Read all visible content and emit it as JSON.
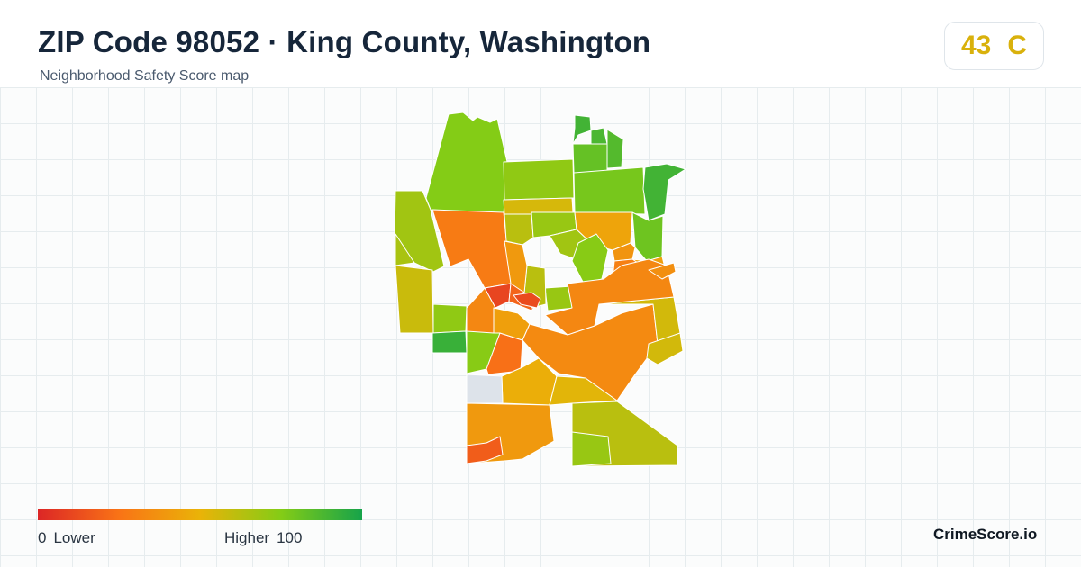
{
  "header": {
    "title": "ZIP Code 98052 · King County, Washington",
    "subtitle": "Neighborhood Safety Score map"
  },
  "score": {
    "value": "43",
    "grade": "C",
    "color": "#d9b10c"
  },
  "legend": {
    "min_value": "0",
    "min_label": "Lower",
    "max_label": "Higher",
    "max_value": "100",
    "gradient": [
      "#dc2626",
      "#f97316",
      "#eab308",
      "#84cc16",
      "#16a34a"
    ]
  },
  "brand": "CrimeScore.io",
  "palette": {
    "no_data": "#dde3ea",
    "tract_outline": "#ffffff"
  },
  "neighborhoods": [
    {
      "id": "n01",
      "score": 75
    },
    {
      "id": "n02",
      "score": 68
    },
    {
      "id": "n03",
      "score": 72
    },
    {
      "id": "n04",
      "score": 82
    },
    {
      "id": "n05",
      "score": 90
    },
    {
      "id": "n06",
      "score": 88
    },
    {
      "id": "n07",
      "score": 78
    },
    {
      "id": "n08",
      "score": 86
    },
    {
      "id": "n09",
      "score": 90
    },
    {
      "id": "n10",
      "score": 28
    },
    {
      "id": "n11",
      "score": 55
    },
    {
      "id": "n12",
      "score": 62
    },
    {
      "id": "n13",
      "score": 70
    },
    {
      "id": "n14",
      "score": 44
    },
    {
      "id": "n15",
      "score": 80
    },
    {
      "id": "n16",
      "score": 68
    },
    {
      "id": "n17",
      "score": 38
    },
    {
      "id": "n18",
      "score": 42
    },
    {
      "id": "n19",
      "score": 30
    },
    {
      "id": "n20",
      "score": 58
    },
    {
      "id": "n21",
      "score": 72
    },
    {
      "id": "n22",
      "score": 10
    },
    {
      "id": "n23",
      "score": 20
    },
    {
      "id": "n24",
      "score": 70
    },
    {
      "id": "n25",
      "score": 62
    },
    {
      "id": "n26",
      "score": 40
    },
    {
      "id": "n27",
      "score": 92
    },
    {
      "id": "n28",
      "score": 74
    },
    {
      "id": "n29",
      "score": 24
    },
    {
      "id": "n30",
      "score": 33
    },
    {
      "id": "n31",
      "score": 42
    },
    {
      "id": "n32",
      "score": 48
    },
    {
      "id": "n33",
      "score": null
    },
    {
      "id": "n34",
      "score": 40
    },
    {
      "id": "n35",
      "score": 62
    },
    {
      "id": "n36",
      "score": 70
    },
    {
      "id": "n37",
      "score": 52
    },
    {
      "id": "n38",
      "score": 34
    },
    {
      "id": "n39",
      "score": 56
    },
    {
      "id": "n40",
      "score": 74
    },
    {
      "id": "n41",
      "score": 33
    },
    {
      "id": "n42",
      "score": 36
    },
    {
      "id": "n43",
      "score": 66
    },
    {
      "id": "n44",
      "score": 56
    },
    {
      "id": "n45",
      "score": 12
    },
    {
      "id": "n46",
      "score": 18
    }
  ]
}
